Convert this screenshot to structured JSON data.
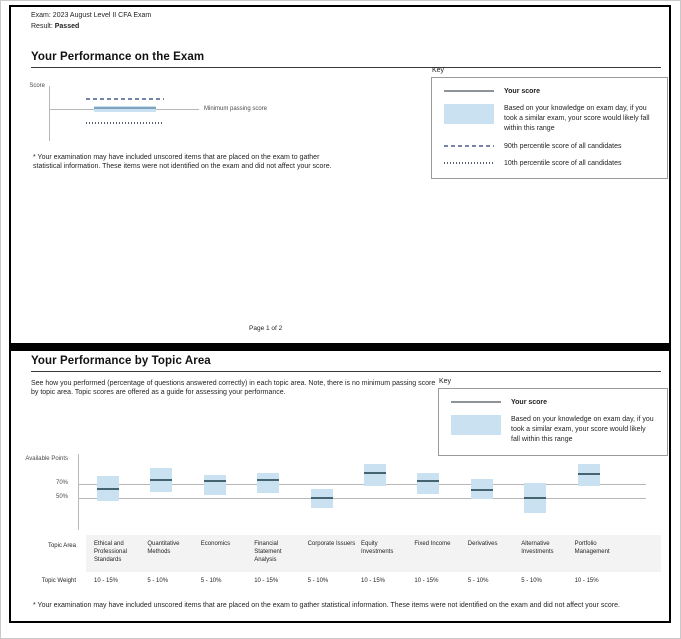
{
  "header": {
    "exam_label": "Exam:",
    "exam_value": "2023 August Level II CFA Exam",
    "result_label": "Result:",
    "result_value": "Passed"
  },
  "page1": {
    "title": "Your Performance on the Exam",
    "axis_label": "Score",
    "minimum_passing_label": "Minimum passing score",
    "footnote": "* Your examination may have included unscored items that are placed on the exam to gather statistical information. These items were not identified on the exam and did not affect your score.",
    "page_indicator": "Page 1 of 2"
  },
  "key1": {
    "title": "Key",
    "entries": [
      {
        "sample": "solid-line",
        "text": "Your score",
        "bold": true
      },
      {
        "sample": "band",
        "text": "Based on your knowledge on exam day, if you took a similar exam, your score would likely fall within this range",
        "bold": false
      },
      {
        "sample": "dashed-line",
        "text": "90th percentile score of all candidates",
        "bold": false
      },
      {
        "sample": "dotted-line",
        "text": "10th percentile score of all candidates",
        "bold": false
      }
    ]
  },
  "page2": {
    "title": "Your Performance by Topic Area",
    "intro": "See how you performed (percentage of questions answered correctly) in each topic area. Note, there is no minimum passing score by topic area. Topic scores are offered as a guide for assessing your performance.",
    "axis_label": "Available Points",
    "footnote": "* Your examination may have included unscored items that are placed on the exam to gather statistical information. These items were not identified on the exam and did not affect your score."
  },
  "key2": {
    "title": "Key",
    "entries": [
      {
        "sample": "solid-line",
        "text": "Your score",
        "bold": true
      },
      {
        "sample": "band",
        "text": "Based on your knowledge on exam day, if you took a similar exam, your score would likely fall within this range",
        "bold": false
      }
    ]
  },
  "table": {
    "row1_header": "Topic Area",
    "row2_header": "Topic Weight"
  },
  "chart_data": [
    {
      "type": "line",
      "subtype": "overall_score_vs_percentiles",
      "title": "Your Performance on the Exam",
      "ylabel": "Score",
      "yaxis_tick_labels": [],
      "note": "No numeric axis values shown; rel_y = relative height within plot (0=bottom, 1=top)",
      "elements": [
        {
          "name": "90th percentile score of all candidates",
          "style": "dashed",
          "rel_y": 0.76
        },
        {
          "name": "Your score",
          "style": "solid",
          "rel_y": 0.6,
          "likely_range_rel_y": [
            0.53,
            0.64
          ]
        },
        {
          "name": "Minimum passing score",
          "style": "solid_gray",
          "rel_y": 0.58
        },
        {
          "name": "10th percentile score of all candidates",
          "style": "dotted",
          "rel_y": 0.33
        }
      ],
      "result_vs_mps": "your score slightly above minimum passing score"
    },
    {
      "type": "bar",
      "subtype": "floating_range_with_score_marker",
      "title": "Your Performance by Topic Area",
      "ylabel": "Available Points",
      "gridlines": [
        70,
        50
      ],
      "ytick_labels": [
        "70%",
        "50%"
      ],
      "grid": true,
      "categories": [
        "Ethical and Professional Standards",
        "Quantitative Methods",
        "Economics",
        "Financial Statement Analysis",
        "Corporate Issuers",
        "Equity Investments",
        "Fixed Income",
        "Derivatives",
        "Alternative Investments",
        "Portfolio Management"
      ],
      "series": [
        {
          "name": "Your score (est. % correct)",
          "values": [
            63,
            76,
            74,
            76,
            50,
            86,
            74,
            61,
            50,
            84
          ]
        },
        {
          "name": "Likely range low (est.)",
          "values": [
            46,
            59,
            54,
            57,
            36,
            67,
            56,
            49,
            29,
            67
          ]
        },
        {
          "name": "Likely range high (est.)",
          "values": [
            81,
            93,
            83,
            86,
            63,
            99,
            86,
            77,
            71,
            99
          ]
        }
      ],
      "topic_weights": [
        "10 - 15%",
        "5 - 10%",
        "5 - 10%",
        "10 - 15%",
        "5 - 10%",
        "10 - 15%",
        "10 - 15%",
        "5 - 10%",
        "5 - 10%",
        "10 - 15%"
      ]
    }
  ]
}
